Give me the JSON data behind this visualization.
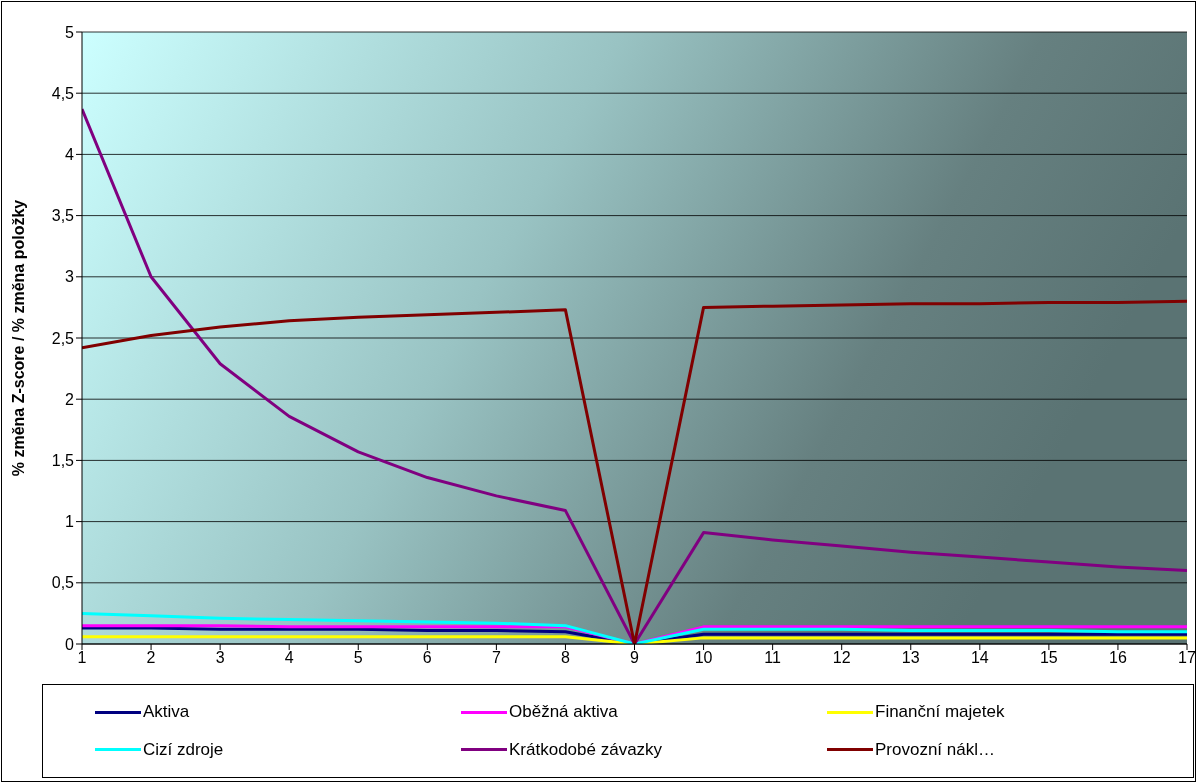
{
  "chart_data": {
    "type": "line",
    "ylabel": "% změna Z-score / % změna položky",
    "x": [
      1,
      2,
      3,
      4,
      5,
      6,
      7,
      8,
      9,
      10,
      11,
      12,
      13,
      14,
      15,
      16,
      17
    ],
    "xlim": [
      1,
      17
    ],
    "xticks": [
      1,
      2,
      3,
      4,
      5,
      6,
      7,
      8,
      9,
      10,
      11,
      12,
      13,
      14,
      15,
      16,
      17
    ],
    "ylim": [
      0,
      5
    ],
    "yticks": [
      0,
      {
        "value": 0.5,
        "label": "0,5"
      },
      1,
      {
        "value": 1.5,
        "label": "1,5"
      },
      2,
      {
        "value": 2.5,
        "label": "2,5"
      },
      3,
      {
        "value": 3.5,
        "label": "3,5"
      },
      4,
      {
        "value": 4.5,
        "label": "4,5"
      },
      5
    ],
    "grid": "y",
    "legend": "bottom",
    "marker": "none",
    "series": [
      {
        "name": "Aktiva",
        "color": "#000080",
        "values": [
          0.13,
          0.13,
          0.12,
          0.12,
          0.12,
          0.11,
          0.11,
          0.1,
          0,
          0.08,
          0.08,
          0.08,
          0.08,
          0.08,
          0.08,
          0.08,
          0.08
        ]
      },
      {
        "name": "Oběžná aktiva",
        "color": "#ff00ff",
        "values": [
          0.15,
          0.15,
          0.15,
          0.14,
          0.14,
          0.14,
          0.14,
          0.14,
          0,
          0.14,
          0.14,
          0.14,
          0.14,
          0.14,
          0.14,
          0.14,
          0.14
        ]
      },
      {
        "name": "Finanční majetek",
        "color": "#ffff00",
        "values": [
          0.06,
          0.06,
          0.06,
          0.06,
          0.06,
          0.06,
          0.06,
          0.06,
          0,
          0.05,
          0.05,
          0.05,
          0.05,
          0.05,
          0.05,
          0.05,
          0.05
        ]
      },
      {
        "name": "Cizí zdroje",
        "color": "#00ffff",
        "values": [
          0.25,
          0.23,
          0.21,
          0.2,
          0.19,
          0.18,
          0.17,
          0.15,
          0,
          0.12,
          0.12,
          0.12,
          0.11,
          0.11,
          0.11,
          0.1,
          0.1
        ]
      },
      {
        "name": "Krátkodobé závazky",
        "color": "#800080",
        "values": [
          4.37,
          3.0,
          2.29,
          1.86,
          1.57,
          1.36,
          1.21,
          1.09,
          0,
          0.91,
          0.85,
          0.8,
          0.75,
          0.71,
          0.67,
          0.63,
          0.6
        ]
      },
      {
        "name": "Provozní nákl…",
        "color": "#800000",
        "values": [
          2.42,
          2.52,
          2.59,
          2.64,
          2.67,
          2.69,
          2.71,
          2.73,
          0,
          2.75,
          2.76,
          2.77,
          2.78,
          2.78,
          2.79,
          2.79,
          2.8
        ]
      }
    ]
  }
}
